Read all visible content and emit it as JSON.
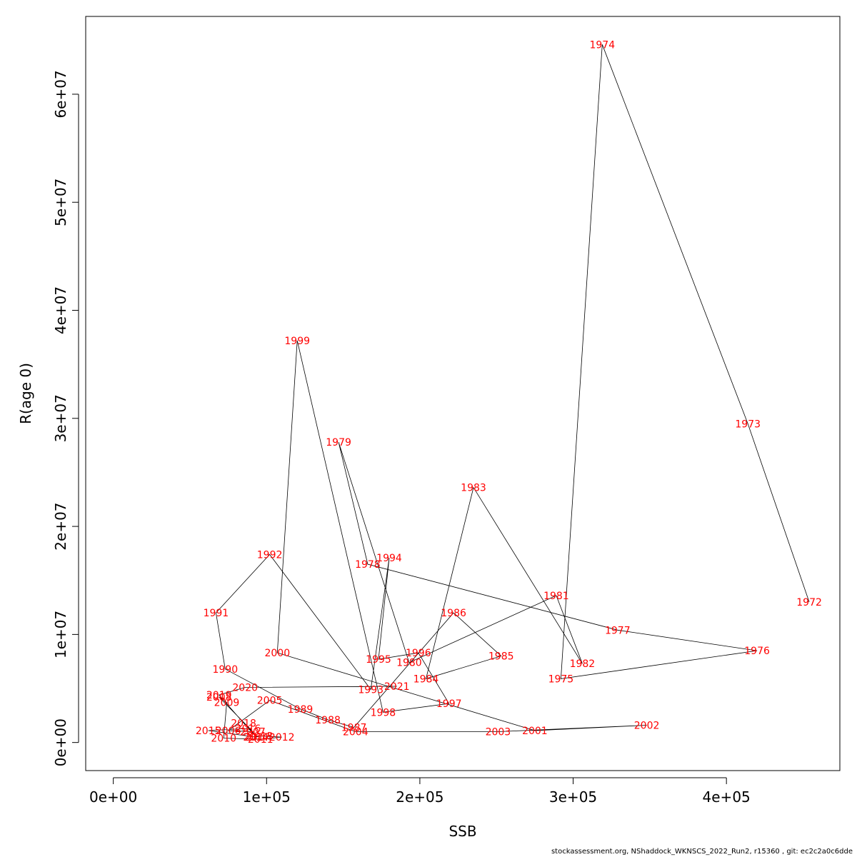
{
  "chart_data": {
    "type": "line",
    "xlabel": "SSB",
    "ylabel": "R(age 0)",
    "xlim": [
      -18000,
      474000
    ],
    "ylim": [
      -2600000,
      67200000
    ],
    "x_ticks": [
      0,
      100000,
      200000,
      300000,
      400000
    ],
    "x_tick_labels": [
      "0e+00",
      "1e+05",
      "2e+05",
      "3e+05",
      "4e+05"
    ],
    "y_ticks": [
      0,
      10000000,
      20000000,
      30000000,
      40000000,
      50000000,
      60000000
    ],
    "y_tick_labels": [
      "0e+00",
      "1e+07",
      "2e+07",
      "3e+07",
      "4e+07",
      "5e+07",
      "6e+07"
    ],
    "label_color": "#ff0000",
    "line_color": "#000000",
    "grid": false,
    "legend": "none",
    "series": [
      {
        "points": [
          {
            "year": "1972",
            "ssb": 454000,
            "r": 13000000
          },
          {
            "year": "1973",
            "ssb": 414000,
            "r": 29500000
          },
          {
            "year": "1974",
            "ssb": 319000,
            "r": 64600000
          },
          {
            "year": "1975",
            "ssb": 292000,
            "r": 5900000
          },
          {
            "year": "1976",
            "ssb": 420000,
            "r": 8500000
          },
          {
            "year": "1977",
            "ssb": 329000,
            "r": 10400000
          },
          {
            "year": "1978",
            "ssb": 166000,
            "r": 16500000
          },
          {
            "year": "1979",
            "ssb": 147000,
            "r": 27800000
          },
          {
            "year": "1980",
            "ssb": 193000,
            "r": 7400000
          },
          {
            "year": "1981",
            "ssb": 289000,
            "r": 13600000
          },
          {
            "year": "1982",
            "ssb": 306000,
            "r": 7300000
          },
          {
            "year": "1983",
            "ssb": 235000,
            "r": 23600000
          },
          {
            "year": "1984",
            "ssb": 204000,
            "r": 5900000
          },
          {
            "year": "1985",
            "ssb": 253000,
            "r": 8000000
          },
          {
            "year": "1986",
            "ssb": 222000,
            "r": 12000000
          },
          {
            "year": "1987",
            "ssb": 157000,
            "r": 1400000
          },
          {
            "year": "1988",
            "ssb": 140000,
            "r": 2100000
          },
          {
            "year": "1989",
            "ssb": 122000,
            "r": 3100000
          },
          {
            "year": "1990",
            "ssb": 73000,
            "r": 6800000
          },
          {
            "year": "1991",
            "ssb": 67000,
            "r": 12000000
          },
          {
            "year": "1992",
            "ssb": 102000,
            "r": 17400000
          },
          {
            "year": "1993",
            "ssb": 168000,
            "r": 4900000
          },
          {
            "year": "1994",
            "ssb": 180000,
            "r": 17100000
          },
          {
            "year": "1995",
            "ssb": 173000,
            "r": 7700000
          },
          {
            "year": "1996",
            "ssb": 199000,
            "r": 8300000
          },
          {
            "year": "1997",
            "ssb": 219000,
            "r": 3600000
          },
          {
            "year": "1998",
            "ssb": 176000,
            "r": 2800000
          },
          {
            "year": "1999",
            "ssb": 120000,
            "r": 37200000
          },
          {
            "year": "2000",
            "ssb": 107000,
            "r": 8300000
          },
          {
            "year": "2001",
            "ssb": 275000,
            "r": 1100000
          },
          {
            "year": "2002",
            "ssb": 348000,
            "r": 1600000
          },
          {
            "year": "2003",
            "ssb": 251000,
            "r": 1000000
          },
          {
            "year": "2004",
            "ssb": 158000,
            "r": 1000000
          },
          {
            "year": "2005",
            "ssb": 102000,
            "r": 3900000
          },
          {
            "year": "2006",
            "ssb": 75000,
            "r": 1100000
          },
          {
            "year": "2007",
            "ssb": 91000,
            "r": 1000000
          },
          {
            "year": "2008",
            "ssb": 69000,
            "r": 4200000
          },
          {
            "year": "2009",
            "ssb": 74000,
            "r": 3700000
          },
          {
            "year": "2010",
            "ssb": 72000,
            "r": 400000
          },
          {
            "year": "2011",
            "ssb": 96000,
            "r": 300000
          },
          {
            "year": "2012",
            "ssb": 110000,
            "r": 500000
          },
          {
            "year": "2013",
            "ssb": 96000,
            "r": 600000
          },
          {
            "year": "2014",
            "ssb": 93000,
            "r": 500000
          },
          {
            "year": "2015",
            "ssb": 62000,
            "r": 1100000
          },
          {
            "year": "2016",
            "ssb": 88000,
            "r": 1300000
          },
          {
            "year": "2017",
            "ssb": 94000,
            "r": 500000
          },
          {
            "year": "2018",
            "ssb": 85000,
            "r": 1800000
          },
          {
            "year": "2019",
            "ssb": 69000,
            "r": 4400000
          },
          {
            "year": "2020",
            "ssb": 86000,
            "r": 5100000
          },
          {
            "year": "2021",
            "ssb": 185000,
            "r": 5200000
          }
        ]
      }
    ]
  },
  "footer_text": "stockassessment.org, NShaddock_WKNSCS_2022_Run2, r15360 , git: ec2c2a0c6dde"
}
